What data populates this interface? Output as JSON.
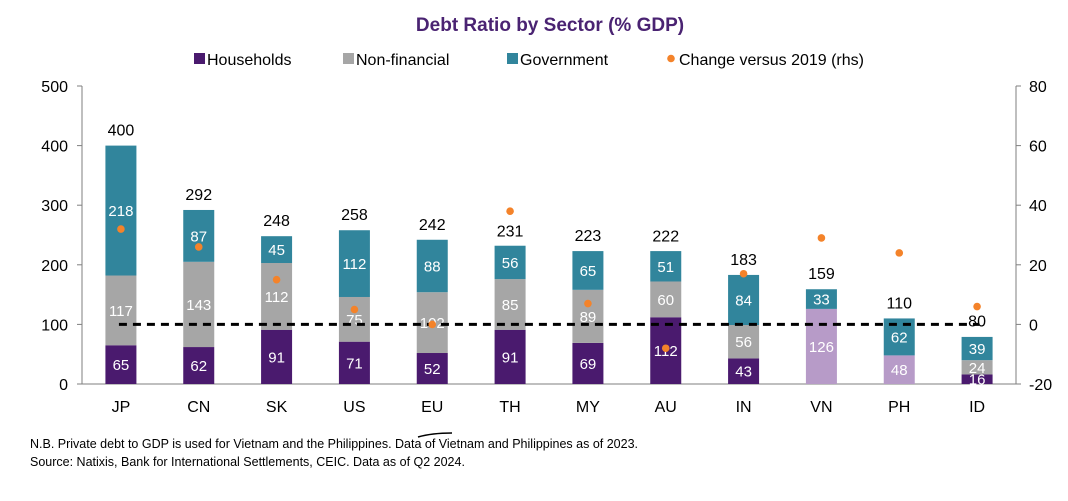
{
  "chart_data": {
    "type": "bar",
    "stacked": true,
    "title": "Debt Ratio by Sector (% GDP)",
    "categories": [
      "JP",
      "CN",
      "SK",
      "US",
      "EU",
      "TH",
      "MY",
      "AU",
      "IN",
      "VN",
      "PH",
      "ID"
    ],
    "series": [
      {
        "name": "Households",
        "values": [
          65,
          62,
          91,
          71,
          52,
          91,
          69,
          112,
          43,
          null,
          null,
          16
        ]
      },
      {
        "name": "Non-financial",
        "values": [
          117,
          143,
          112,
          75,
          102,
          85,
          89,
          60,
          56,
          126,
          48,
          24
        ]
      },
      {
        "name": "Government",
        "values": [
          218,
          87,
          45,
          112,
          88,
          56,
          65,
          51,
          84,
          33,
          62,
          39
        ]
      }
    ],
    "private_debt_categories": [
      "VN",
      "PH"
    ],
    "totals": [
      400,
      292,
      248,
      258,
      242,
      231,
      223,
      222,
      183,
      159,
      110,
      80
    ],
    "change_vs_2019": {
      "name": "Change versus 2019 (rhs)",
      "axis": "right",
      "values": [
        32,
        26,
        15,
        5,
        0,
        38,
        7,
        -8,
        17,
        29,
        24,
        6
      ]
    },
    "y_left": {
      "ylim": [
        0,
        500
      ],
      "ticks": [
        0,
        100,
        200,
        300,
        400,
        500
      ]
    },
    "y_right": {
      "ylim": [
        -20,
        80
      ],
      "ticks": [
        -20,
        0,
        20,
        40,
        60,
        80
      ]
    },
    "reference_line": {
      "axis": "right",
      "value": 0,
      "style": "dashed"
    },
    "legend_position": "top",
    "colors": {
      "households": "#4a1a6e",
      "non_financial": "#a6a6a6",
      "government": "#31859c",
      "private_debt": "#b79bc8",
      "change_marker": "#f4832a",
      "title": "#4a2372"
    }
  },
  "footnotes": [
    "N.B. Private debt to GDP is used for Vietnam and the Philippines. Data of Vietnam and Philippines as of 2023.",
    "Source: Natixis, Bank for International Settlements, CEIC. Data as of Q2 2024."
  ]
}
